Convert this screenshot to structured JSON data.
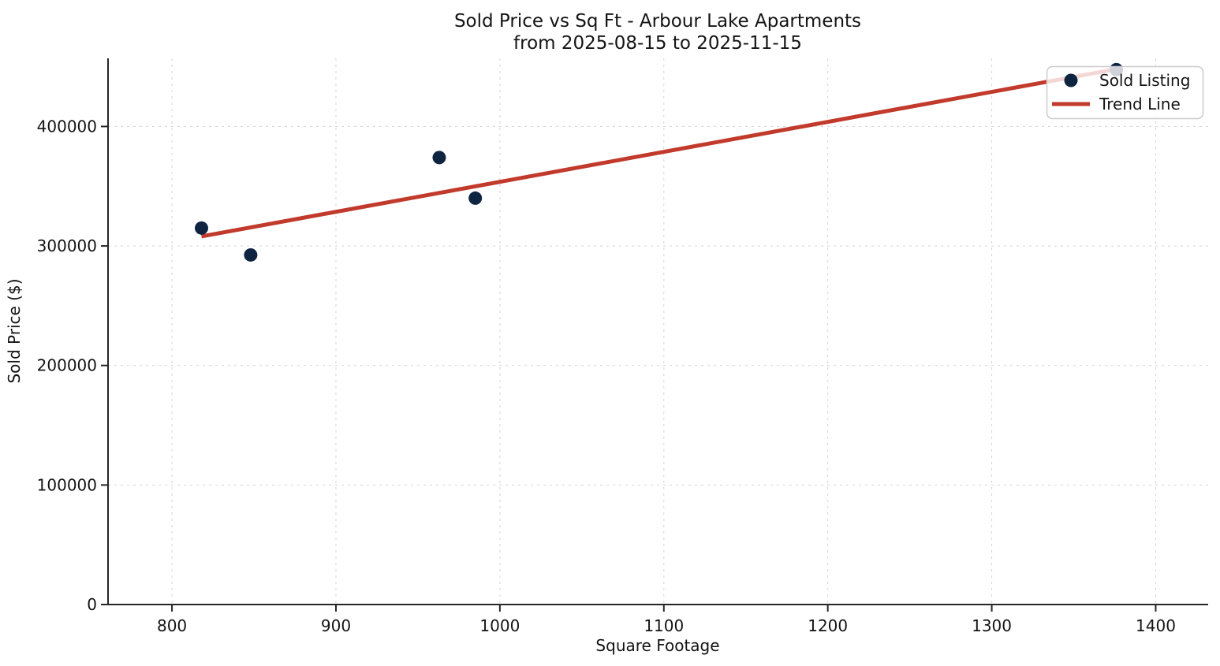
{
  "figure": {
    "background": "#ffffff",
    "text_color": "#141414",
    "grid_color": "#d4d4d4",
    "spine_color": "#262626"
  },
  "chart_data": {
    "type": "scatter",
    "title": "Sold Price vs Sq Ft - Arbour Lake Apartments",
    "subtitle": "from 2025-08-15 to 2025-11-15",
    "xlabel": "Square Footage",
    "ylabel": "Sold Price ($)",
    "xlim": [
      761,
      1432
    ],
    "ylim": [
      0,
      457000
    ],
    "x_ticks": [
      800,
      900,
      1000,
      1100,
      1200,
      1300,
      1400
    ],
    "y_ticks": [
      0,
      100000,
      200000,
      300000,
      400000
    ],
    "grid": true,
    "legend": {
      "position": "upper right"
    },
    "series": [
      {
        "name": "Sold Listing",
        "kind": "scatter",
        "color": "#0f2441",
        "points": [
          {
            "sqft": 818,
            "price": 315000
          },
          {
            "sqft": 848,
            "price": 292500
          },
          {
            "sqft": 963,
            "price": 374000
          },
          {
            "sqft": 985,
            "price": 340000
          },
          {
            "sqft": 1376,
            "price": 447500
          }
        ]
      },
      {
        "name": "Trend Line",
        "kind": "line",
        "color": "#c13a2b",
        "points": [
          {
            "sqft": 818,
            "price": 308000
          },
          {
            "sqft": 1376,
            "price": 448000
          }
        ]
      }
    ]
  }
}
